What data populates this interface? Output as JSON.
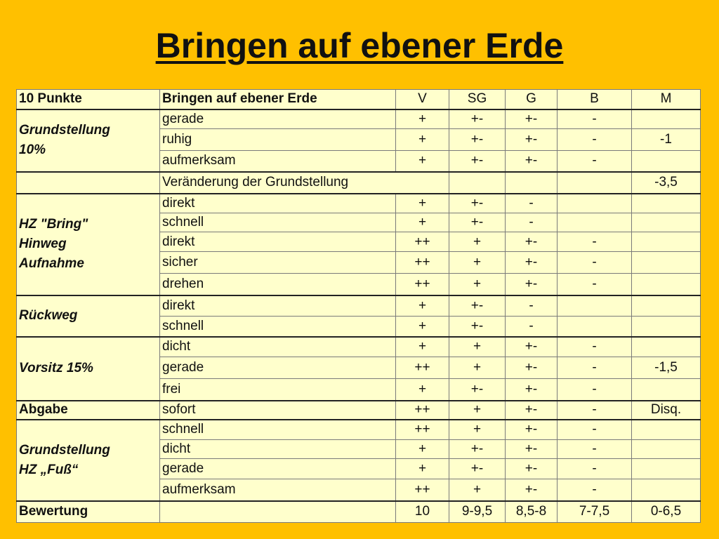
{
  "title": "Bringen auf ebener Erde",
  "header": {
    "points": "10 Punkte",
    "exercise": "Bringen auf ebener Erde",
    "v": "V",
    "sg": "SG",
    "g": "G",
    "b": "B",
    "m": "M"
  },
  "groups": {
    "grundstellung": "Grundstellung\n10%",
    "hz_bring": "HZ \"Bring\"\nHinweg\nAufnahme",
    "rueckweg": "Rückweg",
    "vorsitz": "Vorsitz 15%",
    "abgabe": "Abgabe",
    "grundstellung_fuss": "Grundstellung\nHZ „Fuß“"
  },
  "rows": [
    {
      "crit": "gerade",
      "v": "+",
      "sg": "+-",
      "g": "+-",
      "b": "-",
      "m": ""
    },
    {
      "crit": "ruhig",
      "v": "+",
      "sg": "+-",
      "g": "+-",
      "b": "-",
      "m": "-1"
    },
    {
      "crit": "aufmerksam",
      "v": "+",
      "sg": "+-",
      "g": "+-",
      "b": "-",
      "m": ""
    },
    {
      "crit": "Veränderung der Grundstellung",
      "v": "",
      "sg": "",
      "g": "",
      "b": "",
      "m": "-3,5"
    },
    {
      "crit": "direkt",
      "v": "+",
      "sg": "+-",
      "g": "-",
      "b": "",
      "m": ""
    },
    {
      "crit": "schnell",
      "v": "+",
      "sg": "+-",
      "g": "-",
      "b": "",
      "m": ""
    },
    {
      "crit": "direkt",
      "v": "++",
      "sg": "+",
      "g": "+-",
      "b": "-",
      "m": ""
    },
    {
      "crit": "sicher",
      "v": "++",
      "sg": "+",
      "g": "+-",
      "b": "-",
      "m": ""
    },
    {
      "crit": "drehen",
      "v": "++",
      "sg": "+",
      "g": "+-",
      "b": "-",
      "m": ""
    },
    {
      "crit": "direkt",
      "v": "+",
      "sg": "+-",
      "g": "-",
      "b": "",
      "m": ""
    },
    {
      "crit": "schnell",
      "v": "+",
      "sg": "+-",
      "g": "-",
      "b": "",
      "m": ""
    },
    {
      "crit": "dicht",
      "v": "+",
      "sg": "+",
      "g": "+-",
      "b": "-",
      "m": ""
    },
    {
      "crit": "gerade",
      "v": "++",
      "sg": "+",
      "g": "+-",
      "b": "-",
      "m": "-1,5"
    },
    {
      "crit": "frei",
      "v": "+",
      "sg": "+-",
      "g": "+-",
      "b": "-",
      "m": ""
    },
    {
      "crit": "sofort",
      "v": "++",
      "sg": "+",
      "g": "+-",
      "b": "-",
      "m": "Disq."
    },
    {
      "crit": "schnell",
      "v": "++",
      "sg": "+",
      "g": "+-",
      "b": "-",
      "m": ""
    },
    {
      "crit": "dicht",
      "v": "+",
      "sg": "+-",
      "g": "+-",
      "b": "-",
      "m": ""
    },
    {
      "crit": "gerade",
      "v": "+",
      "sg": "+-",
      "g": "+-",
      "b": "-",
      "m": ""
    },
    {
      "crit": "aufmerksam",
      "v": "++",
      "sg": "+",
      "g": "+-",
      "b": "-",
      "m": ""
    }
  ],
  "footer": {
    "label": "Bewertung",
    "v": "10",
    "sg": "9-9,5",
    "g": "8,5-8",
    "b": "7-7,5",
    "m": "0-6,5"
  },
  "colors": {
    "background": "#FFC000",
    "table_fill": "#FFFFCC"
  }
}
